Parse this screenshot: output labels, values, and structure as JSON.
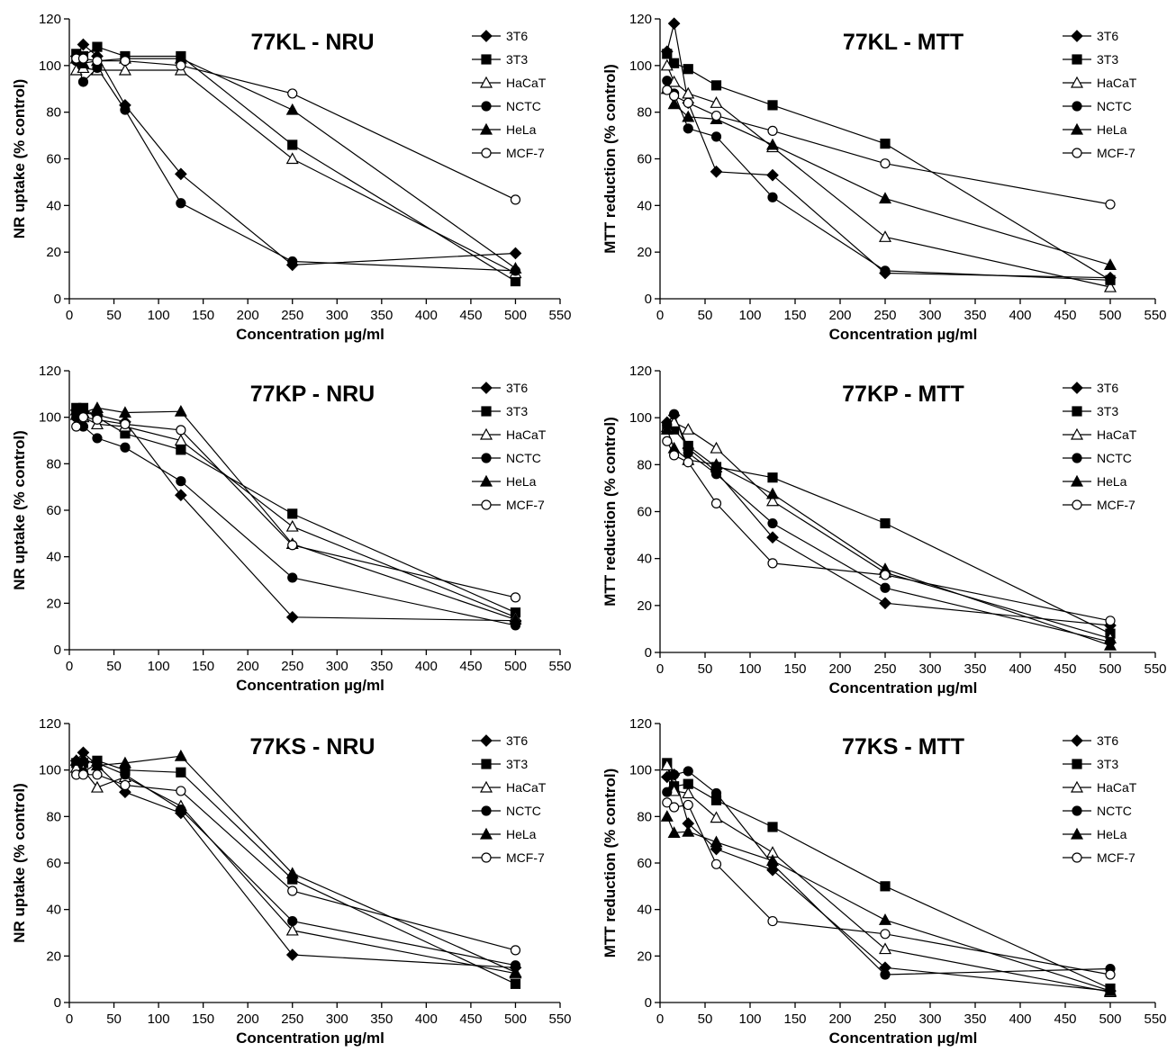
{
  "figure": {
    "legend_entries": [
      {
        "name": "3T6",
        "marker": "diamond",
        "fill": "#000000"
      },
      {
        "name": "3T3",
        "marker": "square",
        "fill": "#000000"
      },
      {
        "name": "HaCaT",
        "marker": "triangle",
        "fill": "#ffffff"
      },
      {
        "name": "NCTC",
        "marker": "circle",
        "fill": "#000000"
      },
      {
        "name": "HeLa",
        "marker": "triangle",
        "fill": "#000000"
      },
      {
        "name": "MCF-7",
        "marker": "circle",
        "fill": "#ffffff"
      }
    ]
  },
  "chart_data": [
    {
      "type": "line",
      "title": "77KL - NRU",
      "xlabel": "Concentration µg/ml",
      "ylabel": "NR uptake (% control)",
      "xlim": [
        0,
        550
      ],
      "ylim": [
        0,
        120
      ],
      "xticks": [
        0,
        50,
        100,
        150,
        200,
        250,
        300,
        350,
        400,
        450,
        500,
        550
      ],
      "yticks": [
        0,
        20,
        40,
        60,
        80,
        100,
        120
      ],
      "grid": false,
      "legend": "top-right",
      "x": [
        7.8,
        15.6,
        31.25,
        62.5,
        125,
        250,
        500
      ],
      "series": [
        {
          "name": "3T6",
          "values": [
            104,
            109,
            104,
            83,
            53.5,
            14.5,
            19.5
          ]
        },
        {
          "name": "3T3",
          "values": [
            105,
            104,
            108,
            104,
            104,
            66,
            7.5
          ]
        },
        {
          "name": "HaCaT",
          "values": [
            98,
            99,
            98,
            98,
            98,
            60,
            11
          ]
        },
        {
          "name": "NCTC",
          "values": [
            102,
            93,
            99,
            81,
            41,
            16,
            12
          ]
        },
        {
          "name": "HeLa",
          "values": [
            103,
            101,
            102,
            103,
            103,
            81,
            13
          ]
        },
        {
          "name": "MCF-7",
          "values": [
            103,
            103,
            102,
            102,
            100,
            88,
            42.5
          ]
        }
      ]
    },
    {
      "type": "line",
      "title": "77KL - MTT",
      "xlabel": "Concentration µg/ml",
      "ylabel": "MTT reduction (% control)",
      "xlim": [
        0,
        550
      ],
      "ylim": [
        0,
        120
      ],
      "xticks": [
        0,
        50,
        100,
        150,
        200,
        250,
        300,
        350,
        400,
        450,
        500,
        550
      ],
      "yticks": [
        0,
        20,
        40,
        60,
        80,
        100,
        120
      ],
      "grid": false,
      "legend": "top-right",
      "x": [
        7.8,
        15.6,
        31.25,
        62.5,
        125,
        250,
        500
      ],
      "series": [
        {
          "name": "3T6",
          "values": [
            106,
            118,
            84,
            54.5,
            53,
            11,
            9
          ]
        },
        {
          "name": "3T3",
          "values": [
            105,
            101,
            98.5,
            91.5,
            83,
            66.5,
            8
          ]
        },
        {
          "name": "HaCaT",
          "values": [
            100,
            93,
            88,
            84,
            65,
            26.5,
            5
          ]
        },
        {
          "name": "NCTC",
          "values": [
            93.5,
            88,
            73,
            69.5,
            43.5,
            12,
            8
          ]
        },
        {
          "name": "HeLa",
          "values": [
            90,
            83.5,
            78,
            77,
            66,
            43,
            14.5
          ]
        },
        {
          "name": "MCF-7",
          "values": [
            89.5,
            87,
            84,
            78.5,
            72,
            58,
            40.5
          ]
        }
      ]
    },
    {
      "type": "line",
      "title": "77KP - NRU",
      "xlabel": "Concentration µg/ml",
      "ylabel": "NR uptake (% control)",
      "xlim": [
        0,
        550
      ],
      "ylim": [
        0,
        120
      ],
      "xticks": [
        0,
        50,
        100,
        150,
        200,
        250,
        300,
        350,
        400,
        450,
        500,
        550
      ],
      "yticks": [
        0,
        20,
        40,
        60,
        80,
        100,
        120
      ],
      "grid": false,
      "legend": "top-right",
      "x": [
        7.8,
        15.6,
        31.25,
        62.5,
        125,
        250,
        500
      ],
      "series": [
        {
          "name": "3T6",
          "values": [
            103,
            102,
            101,
            98,
            66.5,
            14,
            12.5
          ]
        },
        {
          "name": "3T3",
          "values": [
            104,
            104,
            100,
            93,
            86,
            58.5,
            16
          ]
        },
        {
          "name": "HaCaT",
          "values": [
            101,
            100,
            97,
            96,
            90,
            53,
            14
          ]
        },
        {
          "name": "NCTC",
          "values": [
            100,
            96,
            91,
            87,
            72.5,
            31,
            10.5
          ]
        },
        {
          "name": "HeLa",
          "values": [
            103,
            102,
            104,
            102,
            102.5,
            45.5,
            13
          ]
        },
        {
          "name": "MCF-7",
          "values": [
            96,
            100,
            99,
            97,
            94.5,
            45,
            22.5
          ]
        }
      ]
    },
    {
      "type": "line",
      "title": "77KP - MTT",
      "xlabel": "Concentration µg/ml",
      "ylabel": "MTT reduction (% control)",
      "xlim": [
        0,
        550
      ],
      "ylim": [
        0,
        120
      ],
      "xticks": [
        0,
        50,
        100,
        150,
        200,
        250,
        300,
        350,
        400,
        450,
        500,
        550
      ],
      "yticks": [
        0,
        20,
        40,
        60,
        80,
        100,
        120
      ],
      "grid": false,
      "legend": "top-right",
      "x": [
        7.8,
        15.6,
        31.25,
        62.5,
        125,
        250,
        500
      ],
      "series": [
        {
          "name": "3T6",
          "values": [
            98,
            101,
            87,
            77,
            49,
            21,
            11.5
          ]
        },
        {
          "name": "3T3",
          "values": [
            95,
            95,
            88,
            79,
            74.5,
            55,
            8
          ]
        },
        {
          "name": "HaCaT",
          "values": [
            96,
            98,
            95,
            87,
            64.5,
            34,
            6
          ]
        },
        {
          "name": "NCTC",
          "values": [
            97,
            101.5,
            85,
            76,
            55,
            27.5,
            4.5
          ]
        },
        {
          "name": "HeLa",
          "values": [
            95,
            87,
            82,
            80,
            67.5,
            35.5,
            3
          ]
        },
        {
          "name": "MCF-7",
          "values": [
            90,
            84,
            81,
            63.5,
            38,
            33,
            13.5
          ]
        }
      ]
    },
    {
      "type": "line",
      "title": "77KS - NRU",
      "xlabel": "Concentration µg/ml",
      "ylabel": "NR uptake (% control)",
      "xlim": [
        0,
        550
      ],
      "ylim": [
        0,
        120
      ],
      "xticks": [
        0,
        50,
        100,
        150,
        200,
        250,
        300,
        350,
        400,
        450,
        500,
        550
      ],
      "yticks": [
        0,
        20,
        40,
        60,
        80,
        100,
        120
      ],
      "grid": false,
      "legend": "top-right",
      "x": [
        7.8,
        15.6,
        31.25,
        62.5,
        125,
        250,
        500
      ],
      "series": [
        {
          "name": "3T6",
          "values": [
            104,
            107.5,
            102,
            90.5,
            81.5,
            20.5,
            15
          ]
        },
        {
          "name": "3T3",
          "values": [
            103,
            103,
            104,
            100,
            99,
            53,
            8
          ]
        },
        {
          "name": "HaCaT",
          "values": [
            101,
            100,
            92.5,
            97,
            84.5,
            31,
            12.5
          ]
        },
        {
          "name": "NCTC",
          "values": [
            98,
            99,
            103,
            98,
            83,
            35,
            16
          ]
        },
        {
          "name": "HeLa",
          "values": [
            104,
            105,
            102,
            103,
            106,
            55.5,
            13
          ]
        },
        {
          "name": "MCF-7",
          "values": [
            98,
            98,
            98,
            93.5,
            91,
            48,
            22.5
          ]
        }
      ]
    },
    {
      "type": "line",
      "title": "77KS - MTT",
      "xlabel": "Concentration µg/ml",
      "ylabel": "MTT reduction (% control)",
      "xlim": [
        0,
        550
      ],
      "ylim": [
        0,
        120
      ],
      "xticks": [
        0,
        50,
        100,
        150,
        200,
        250,
        300,
        350,
        400,
        450,
        500,
        550
      ],
      "yticks": [
        0,
        20,
        40,
        60,
        80,
        100,
        120
      ],
      "grid": false,
      "legend": "top-right",
      "x": [
        7.8,
        15.6,
        31.25,
        62.5,
        125,
        250,
        500
      ],
      "series": [
        {
          "name": "3T6",
          "values": [
            97,
            98,
            77,
            66,
            57,
            15,
            5
          ]
        },
        {
          "name": "3T3",
          "values": [
            103,
            93,
            94,
            87,
            75.5,
            50,
            6
          ]
        },
        {
          "name": "HaCaT",
          "values": [
            102,
            91,
            90,
            79.5,
            64.5,
            23,
            4.5
          ]
        },
        {
          "name": "NCTC",
          "values": [
            90.5,
            98,
            99.5,
            90,
            59.5,
            12,
            14.5
          ]
        },
        {
          "name": "HeLa",
          "values": [
            80,
            73,
            73.5,
            69,
            61,
            35.5,
            5
          ]
        },
        {
          "name": "MCF-7",
          "values": [
            86,
            84,
            85,
            59.5,
            35,
            29.5,
            12
          ]
        }
      ]
    }
  ]
}
